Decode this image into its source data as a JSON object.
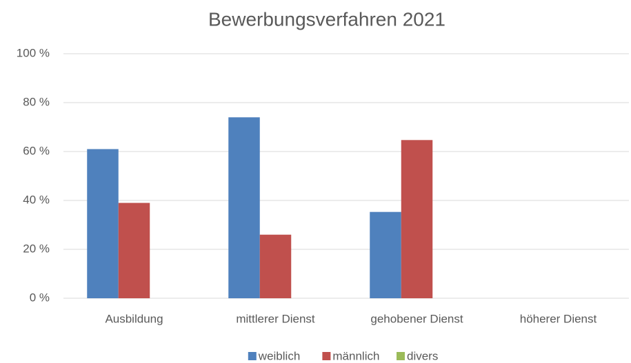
{
  "chart_data": {
    "type": "bar",
    "title": "Bewerbungsverfahren 2021",
    "categories": [
      "Ausbildung",
      "mittlerer Dienst",
      "gehobener Dienst",
      "höherer Dienst"
    ],
    "series": [
      {
        "name": "weiblich",
        "color": "#4f81bd",
        "values": [
          61,
          74,
          35.3,
          0
        ]
      },
      {
        "name": "männlich",
        "color": "#c0504d",
        "values": [
          39,
          26,
          64.7,
          0
        ]
      },
      {
        "name": "divers",
        "color": "#9bbb59",
        "values": [
          0,
          0,
          0,
          0
        ]
      }
    ],
    "ylim": [
      0,
      100
    ],
    "yticks": [
      {
        "value": 0,
        "label": "0 %"
      },
      {
        "value": 20,
        "label": "20 %"
      },
      {
        "value": 40,
        "label": "40 %"
      },
      {
        "value": 60,
        "label": "60 %"
      },
      {
        "value": 80,
        "label": "80 %"
      },
      {
        "value": 100,
        "label": "100 %"
      }
    ],
    "grid": true,
    "legend": "bottom"
  }
}
